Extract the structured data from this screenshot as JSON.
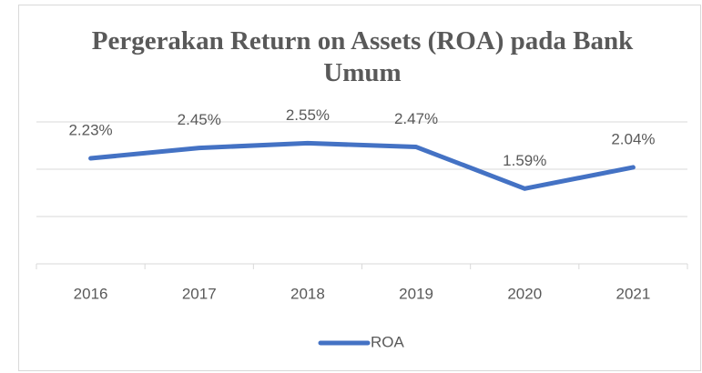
{
  "chart_data": {
    "type": "line",
    "title": "Pergerakan Return on Assets (ROA) pada Bank Umum",
    "categories": [
      "2016",
      "2017",
      "2018",
      "2019",
      "2020",
      "2021"
    ],
    "series": [
      {
        "name": "ROA",
        "color": "#4472c4",
        "values": [
          2.23,
          2.45,
          2.55,
          2.47,
          1.59,
          2.04
        ],
        "value_labels": [
          "2.23%",
          "2.45%",
          "2.55%",
          "2.47%",
          "1.59%",
          "2.04%"
        ]
      }
    ],
    "ylim": [
      0,
      3
    ],
    "yticks": [
      0,
      1,
      2,
      3
    ],
    "grid": true,
    "legend": "bottom"
  }
}
